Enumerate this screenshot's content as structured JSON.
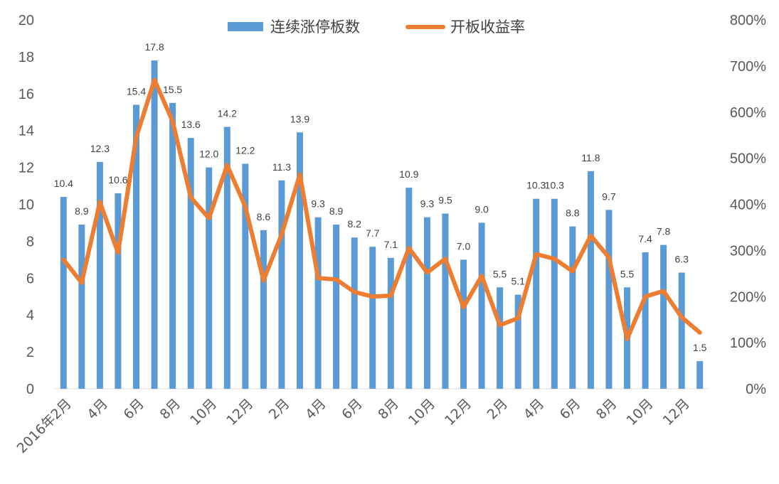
{
  "chart_data": {
    "type": "bar",
    "title": "",
    "xlabel": "",
    "ylabel": "",
    "ylim": [
      0,
      20
    ],
    "y2lim": [
      0,
      800
    ],
    "y_ticks": [
      "0",
      "2",
      "4",
      "6",
      "8",
      "10",
      "12",
      "14",
      "16",
      "18",
      "20"
    ],
    "y2_ticks": [
      "0%",
      "100%",
      "200%",
      "300%",
      "400%",
      "500%",
      "600%",
      "700%",
      "800%"
    ],
    "x_tick_labels": [
      "2016年2月",
      "4月",
      "6月",
      "8月",
      "10月",
      "12月",
      "2月",
      "4月",
      "6月",
      "8月",
      "10月",
      "12月",
      "2月",
      "4月",
      "6月",
      "8月",
      "10月",
      "12月"
    ],
    "legend_position": "top-center",
    "colors": {
      "bar": "#5b9bd5",
      "line": "#ed7d31"
    },
    "categories": [
      "2016-02",
      "2016-03",
      "2016-04",
      "2016-05",
      "2016-06",
      "2016-07",
      "2016-08",
      "2016-09",
      "2016-10",
      "2016-11",
      "2016-12",
      "2017-01",
      "2017-02",
      "2017-03",
      "2017-04",
      "2017-05",
      "2017-06",
      "2017-07",
      "2017-08",
      "2017-09",
      "2017-10",
      "2017-11",
      "2017-12",
      "2018-01",
      "2018-02",
      "2018-03",
      "2018-04",
      "2018-05",
      "2018-06",
      "2018-07",
      "2018-08",
      "2018-09",
      "2018-10",
      "2018-11",
      "2018-12",
      "2019-01"
    ],
    "series": [
      {
        "name": "连续涨停板数",
        "type": "bar",
        "axis": "left",
        "values": [
          10.4,
          8.9,
          12.3,
          10.6,
          15.4,
          17.8,
          15.5,
          13.6,
          12.0,
          14.2,
          12.2,
          8.6,
          11.3,
          13.9,
          9.3,
          8.9,
          8.2,
          7.7,
          7.1,
          10.9,
          9.3,
          9.5,
          7.0,
          9.0,
          5.5,
          5.1,
          10.3,
          10.3,
          8.8,
          11.8,
          9.7,
          5.5,
          7.4,
          7.8,
          6.3,
          1.5
        ],
        "labels": [
          "10.4",
          "8.9",
          "12.3",
          "10.6",
          "15.4",
          "17.8",
          "15.5",
          "13.6",
          "12.0",
          "14.2",
          "12.2",
          "8.6",
          "11.3",
          "13.9",
          "9.3",
          "8.9",
          "8.2",
          "7.7",
          "7.1",
          "10.9",
          "9.3",
          "9.5",
          "7.0",
          "9.0",
          "5.5",
          "5.1",
          "10.3",
          "10.3",
          "8.8",
          "11.8",
          "9.7",
          "5.5",
          "7.4",
          "7.8",
          "6.3",
          "1.5"
        ]
      },
      {
        "name": "开板收益率",
        "type": "line",
        "axis": "right",
        "values": [
          280,
          230,
          405,
          295,
          545,
          670,
          580,
          415,
          370,
          485,
          395,
          235,
          335,
          465,
          240,
          237,
          210,
          200,
          202,
          305,
          252,
          282,
          177,
          245,
          138,
          153,
          292,
          282,
          255,
          332,
          285,
          108,
          200,
          212,
          155,
          122
        ]
      }
    ]
  }
}
